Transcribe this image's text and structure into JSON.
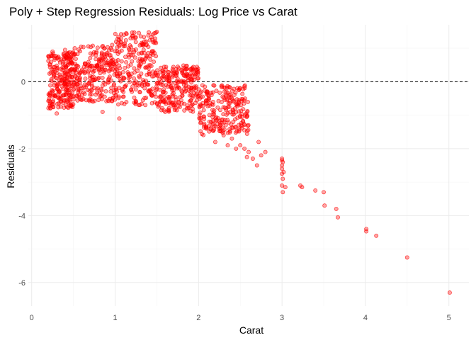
{
  "chart_data": {
    "type": "scatter",
    "title": "Poly + Step Regression Residuals: Log Price vs Carat",
    "xlabel": "Carat",
    "ylabel": "Residuals",
    "xlim": [
      -0.04,
      5.24
    ],
    "ylim": [
      -6.7,
      1.7
    ],
    "xticks": [
      0,
      1,
      2,
      3,
      4,
      5
    ],
    "yticks": [
      -6,
      -4,
      -2,
      0
    ],
    "grid": true,
    "reference_line": {
      "y": 0,
      "style": "dashed"
    },
    "point_color": "#ff0000",
    "dense_clusters": [
      {
        "x_range": [
          0.2,
          0.5
        ],
        "y_range": [
          -0.8,
          0.9
        ]
      },
      {
        "x_range": [
          0.5,
          1.0
        ],
        "y_range": [
          -0.6,
          1.1
        ]
      },
      {
        "x_range": [
          1.0,
          1.5
        ],
        "y_range": [
          -0.7,
          1.5
        ]
      },
      {
        "x_range": [
          1.5,
          2.0
        ],
        "y_range": [
          -0.9,
          0.5
        ]
      },
      {
        "x_range": [
          2.0,
          2.6
        ],
        "y_range": [
          -1.6,
          -0.1
        ]
      }
    ],
    "series": [
      {
        "points": [
          [
            2.15,
            -1.2
          ],
          [
            2.25,
            -1.4
          ],
          [
            2.3,
            -1.6
          ],
          [
            2.4,
            -1.7
          ],
          [
            2.5,
            -1.9
          ],
          [
            2.55,
            -2.0
          ],
          [
            2.6,
            -2.1
          ],
          [
            2.65,
            -2.3
          ],
          [
            2.7,
            -2.5
          ],
          [
            2.72,
            -1.8
          ],
          [
            2.75,
            -2.2
          ],
          [
            2.8,
            -2.1
          ],
          [
            2.2,
            -1.8
          ],
          [
            2.35,
            -1.9
          ],
          [
            2.45,
            -2.0
          ],
          [
            2.58,
            -2.25
          ],
          [
            1.6,
            -0.9
          ],
          [
            1.7,
            -0.7
          ],
          [
            1.05,
            -1.1
          ],
          [
            0.85,
            -0.9
          ],
          [
            0.3,
            -0.95
          ],
          [
            0.25,
            0.9
          ],
          [
            0.4,
            0.95
          ],
          [
            3.0,
            -2.3
          ],
          [
            3.0,
            -2.35
          ],
          [
            3.01,
            -2.4
          ],
          [
            3.0,
            -2.5
          ],
          [
            3.0,
            -2.6
          ],
          [
            3.02,
            -2.7
          ],
          [
            3.0,
            -2.75
          ],
          [
            3.01,
            -2.9
          ],
          [
            3.0,
            -3.1
          ],
          [
            3.04,
            -3.15
          ],
          [
            3.01,
            -3.3
          ],
          [
            3.22,
            -3.1
          ],
          [
            3.24,
            -3.15
          ],
          [
            3.4,
            -3.25
          ],
          [
            3.5,
            -3.3
          ],
          [
            3.51,
            -3.7
          ],
          [
            3.65,
            -3.8
          ],
          [
            3.67,
            -4.05
          ],
          [
            4.01,
            -4.4
          ],
          [
            4.01,
            -4.47
          ],
          [
            4.13,
            -4.6
          ],
          [
            4.5,
            -5.25
          ],
          [
            5.01,
            -6.3
          ]
        ]
      }
    ]
  }
}
